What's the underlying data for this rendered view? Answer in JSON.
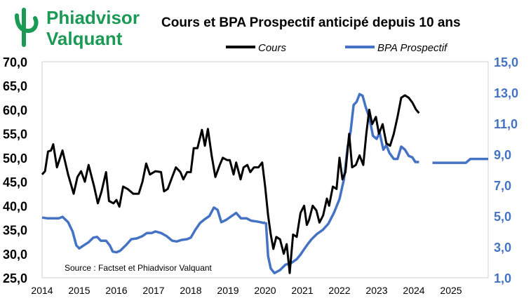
{
  "brand": {
    "line1": "Phiadvisor",
    "line2": "Valquant",
    "color": "#1a9a55",
    "icon": "phi-logo-icon"
  },
  "chart_data": {
    "type": "line",
    "title": "Cours et BPA Prospectif anticipé depuis 10 ans",
    "source": "Source : Factset et Phiadvisor Valquant",
    "xlabel": "",
    "x_ticks": [
      "2014",
      "2015",
      "2016",
      "2017",
      "2018",
      "2019",
      "2020",
      "2021",
      "2022",
      "2023",
      "2024",
      "2025"
    ],
    "xlim": [
      2014,
      2026
    ],
    "y_left": {
      "ticks": [
        "70,0",
        "65,0",
        "60,0",
        "55,0",
        "50,0",
        "45,0",
        "40,0",
        "35,0",
        "30,0",
        "25,0"
      ],
      "lim": [
        25,
        70
      ],
      "color": "#000000"
    },
    "y_right": {
      "ticks": [
        "15,0",
        "13,0",
        "11,0",
        "9,0",
        "7,0",
        "5,0",
        "3,0",
        "1,0"
      ],
      "lim": [
        1,
        15
      ],
      "color": "#4472c4"
    },
    "legend_position": "top-center",
    "series": [
      {
        "name": "Cours",
        "axis": "left",
        "color": "#000000",
        "points": [
          [
            2014.0,
            46.5
          ],
          [
            2014.08,
            47.2
          ],
          [
            2014.16,
            51.3
          ],
          [
            2014.24,
            51.5
          ],
          [
            2014.3,
            52.8
          ],
          [
            2014.4,
            48.0
          ],
          [
            2014.55,
            51.5
          ],
          [
            2014.7,
            46.5
          ],
          [
            2014.85,
            42.5
          ],
          [
            2014.95,
            46.0
          ],
          [
            2015.05,
            47.2
          ],
          [
            2015.15,
            45.0
          ],
          [
            2015.25,
            48.5
          ],
          [
            2015.4,
            44.0
          ],
          [
            2015.5,
            40.5
          ],
          [
            2015.6,
            43.0
          ],
          [
            2015.72,
            47.0
          ],
          [
            2015.8,
            41.0
          ],
          [
            2015.92,
            40.5
          ],
          [
            2016.0,
            41.2
          ],
          [
            2016.08,
            39.8
          ],
          [
            2016.18,
            44.0
          ],
          [
            2016.3,
            43.5
          ],
          [
            2016.45,
            42.5
          ],
          [
            2016.6,
            42.5
          ],
          [
            2016.7,
            45.0
          ],
          [
            2016.8,
            48.8
          ],
          [
            2016.9,
            46.5
          ],
          [
            2017.05,
            47.2
          ],
          [
            2017.2,
            47.0
          ],
          [
            2017.28,
            43.0
          ],
          [
            2017.38,
            43.5
          ],
          [
            2017.5,
            46.0
          ],
          [
            2017.6,
            48.0
          ],
          [
            2017.72,
            47.0
          ],
          [
            2017.8,
            45.5
          ],
          [
            2017.9,
            47.0
          ],
          [
            2018.0,
            47.0
          ],
          [
            2018.08,
            52.0
          ],
          [
            2018.18,
            52.0
          ],
          [
            2018.3,
            55.8
          ],
          [
            2018.38,
            52.5
          ],
          [
            2018.46,
            56.0
          ],
          [
            2018.56,
            50.5
          ],
          [
            2018.66,
            46.0
          ],
          [
            2018.78,
            48.5
          ],
          [
            2018.86,
            50.0
          ],
          [
            2018.98,
            49.5
          ],
          [
            2019.05,
            49.5
          ],
          [
            2019.15,
            46.5
          ],
          [
            2019.22,
            49.0
          ],
          [
            2019.34,
            45.5
          ],
          [
            2019.42,
            48.0
          ],
          [
            2019.52,
            48.5
          ],
          [
            2019.6,
            47.0
          ],
          [
            2019.7,
            48.0
          ],
          [
            2019.82,
            48.0
          ],
          [
            2019.92,
            49.0
          ],
          [
            2020.0,
            44.0
          ],
          [
            2020.08,
            38.0
          ],
          [
            2020.15,
            34.0
          ],
          [
            2020.22,
            31.0
          ],
          [
            2020.3,
            33.5
          ],
          [
            2020.4,
            33.0
          ],
          [
            2020.5,
            30.0
          ],
          [
            2020.58,
            32.0
          ],
          [
            2020.66,
            26.0
          ],
          [
            2020.75,
            34.0
          ],
          [
            2020.85,
            33.5
          ],
          [
            2020.95,
            38.5
          ],
          [
            2021.05,
            40.0
          ],
          [
            2021.12,
            36.0
          ],
          [
            2021.18,
            37.0
          ],
          [
            2021.28,
            40.0
          ],
          [
            2021.38,
            39.0
          ],
          [
            2021.46,
            36.5
          ],
          [
            2021.56,
            38.0
          ],
          [
            2021.66,
            41.5
          ],
          [
            2021.72,
            40.0
          ],
          [
            2021.82,
            44.0
          ],
          [
            2021.92,
            43.5
          ],
          [
            2022.0,
            50.0
          ],
          [
            2022.08,
            45.5
          ],
          [
            2022.16,
            47.0
          ],
          [
            2022.26,
            55.0
          ],
          [
            2022.34,
            48.0
          ],
          [
            2022.44,
            48.5
          ],
          [
            2022.54,
            50.5
          ],
          [
            2022.64,
            48.5
          ],
          [
            2022.72,
            55.0
          ],
          [
            2022.8,
            60.0
          ],
          [
            2022.88,
            57.0
          ],
          [
            2022.98,
            58.5
          ],
          [
            2023.06,
            55.0
          ],
          [
            2023.16,
            57.0
          ],
          [
            2023.26,
            53.0
          ],
          [
            2023.36,
            52.5
          ],
          [
            2023.46,
            55.0
          ],
          [
            2023.56,
            58.5
          ],
          [
            2023.66,
            62.5
          ],
          [
            2023.76,
            63.0
          ],
          [
            2023.86,
            62.5
          ],
          [
            2023.96,
            61.5
          ],
          [
            2024.06,
            60.0
          ],
          [
            2024.14,
            59.3
          ]
        ]
      },
      {
        "name": "BPA Prospectif",
        "axis": "right",
        "color": "#4472c4",
        "segments": [
          [
            [
              2014.0,
              4.9
            ],
            [
              2014.15,
              4.85
            ],
            [
              2014.3,
              4.85
            ],
            [
              2014.45,
              4.85
            ],
            [
              2014.55,
              4.95
            ],
            [
              2014.7,
              4.6
            ],
            [
              2014.82,
              4.0
            ],
            [
              2014.92,
              3.1
            ],
            [
              2015.0,
              2.9
            ],
            [
              2015.12,
              3.1
            ],
            [
              2015.25,
              3.3
            ],
            [
              2015.38,
              3.6
            ],
            [
              2015.48,
              3.65
            ],
            [
              2015.58,
              3.4
            ],
            [
              2015.72,
              3.4
            ],
            [
              2015.82,
              3.1
            ],
            [
              2015.9,
              2.7
            ],
            [
              2016.0,
              2.65
            ],
            [
              2016.1,
              2.75
            ],
            [
              2016.25,
              3.1
            ],
            [
              2016.4,
              3.5
            ],
            [
              2016.55,
              3.55
            ],
            [
              2016.7,
              3.7
            ],
            [
              2016.82,
              3.9
            ],
            [
              2016.95,
              3.9
            ],
            [
              2017.05,
              4.0
            ],
            [
              2017.2,
              3.9
            ],
            [
              2017.35,
              3.7
            ],
            [
              2017.5,
              3.4
            ],
            [
              2017.62,
              3.35
            ],
            [
              2017.75,
              3.45
            ],
            [
              2017.9,
              3.5
            ],
            [
              2018.0,
              3.6
            ],
            [
              2018.12,
              4.1
            ],
            [
              2018.25,
              4.55
            ],
            [
              2018.38,
              4.8
            ],
            [
              2018.5,
              5.0
            ],
            [
              2018.62,
              5.55
            ],
            [
              2018.72,
              5.4
            ],
            [
              2018.82,
              4.6
            ],
            [
              2018.95,
              4.75
            ],
            [
              2019.1,
              5.0
            ],
            [
              2019.22,
              5.2
            ],
            [
              2019.35,
              4.85
            ],
            [
              2019.5,
              4.85
            ],
            [
              2019.62,
              4.7
            ],
            [
              2019.76,
              4.65
            ],
            [
              2019.88,
              4.6
            ],
            [
              2019.96,
              4.55
            ],
            [
              2020.0,
              4.6
            ]
          ],
          [
            [
              2020.02,
              4.6
            ],
            [
              2020.08,
              2.4
            ],
            [
              2020.15,
              1.6
            ],
            [
              2020.25,
              1.3
            ],
            [
              2020.4,
              1.5
            ],
            [
              2020.55,
              1.85
            ],
            [
              2020.7,
              1.95
            ],
            [
              2020.85,
              2.2
            ],
            [
              2020.95,
              2.5
            ],
            [
              2021.05,
              2.85
            ],
            [
              2021.15,
              3.2
            ],
            [
              2021.25,
              3.5
            ],
            [
              2021.4,
              3.85
            ],
            [
              2021.55,
              4.1
            ],
            [
              2021.7,
              4.5
            ],
            [
              2021.85,
              5.2
            ],
            [
              2022.0,
              6.1
            ],
            [
              2022.12,
              7.4
            ],
            [
              2022.22,
              9.5
            ],
            [
              2022.3,
              10.5
            ],
            [
              2022.38,
              12.2
            ],
            [
              2022.46,
              12.4
            ],
            [
              2022.54,
              12.9
            ],
            [
              2022.62,
              12.8
            ],
            [
              2022.7,
              12.1
            ],
            [
              2022.8,
              11.4
            ],
            [
              2022.9,
              10.2
            ],
            [
              2023.0,
              10.0
            ],
            [
              2023.08,
              10.4
            ],
            [
              2023.18,
              9.3
            ],
            [
              2023.26,
              9.6
            ],
            [
              2023.34,
              9.1
            ],
            [
              2023.46,
              8.7
            ],
            [
              2023.56,
              8.7
            ],
            [
              2023.66,
              9.5
            ],
            [
              2023.76,
              9.3
            ],
            [
              2023.86,
              8.9
            ],
            [
              2023.96,
              8.8
            ],
            [
              2024.04,
              8.5
            ],
            [
              2024.14,
              8.5
            ]
          ],
          [
            [
              2024.5,
              8.45
            ],
            [
              2025.0,
              8.45
            ],
            [
              2025.4,
              8.45
            ],
            [
              2025.52,
              8.7
            ],
            [
              2025.7,
              8.7
            ],
            [
              2026.0,
              8.7
            ]
          ]
        ]
      }
    ]
  }
}
